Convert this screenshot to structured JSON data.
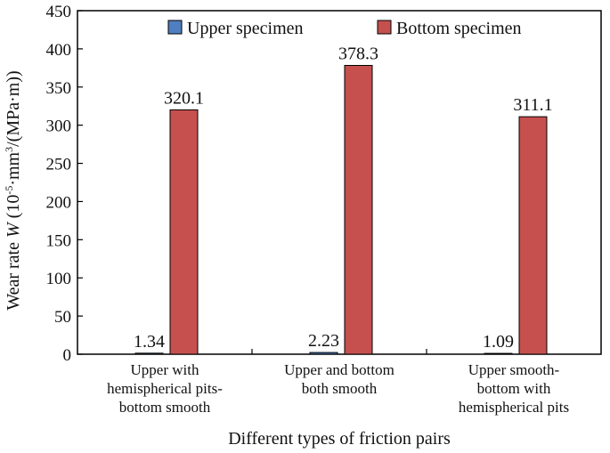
{
  "chart_data": {
    "type": "bar",
    "categories": [
      [
        "Upper with",
        "hemispherical pits-",
        "bottom smooth"
      ],
      [
        "Upper and bottom",
        "both smooth"
      ],
      [
        "Upper smooth-",
        "bottom with",
        "hemispherical pits"
      ]
    ],
    "series": [
      {
        "name": "Upper specimen",
        "color": "#4f7fc0",
        "values": [
          1.34,
          2.23,
          1.09
        ],
        "labels": [
          "1.34",
          "2.23",
          "1.09"
        ]
      },
      {
        "name": "Bottom specimen",
        "color": "#c5504e",
        "values": [
          320.1,
          378.3,
          311.1
        ],
        "labels": [
          "320.1",
          "378.3",
          "311.1"
        ]
      }
    ],
    "xlabel": "Different types of friction pairs",
    "ylabel": {
      "prefix": "Wear rate ",
      "symbol": "W",
      "unit_pre": " (10",
      "unit_exp1": "-5",
      "unit_mid": "·mm",
      "unit_exp2": "3",
      "unit_post": "/(MPa·m))"
    },
    "ylim": [
      0,
      450
    ],
    "yticks": [
      0,
      50,
      100,
      150,
      200,
      250,
      300,
      350,
      400,
      450
    ],
    "grid": false,
    "legend": "top-center"
  }
}
